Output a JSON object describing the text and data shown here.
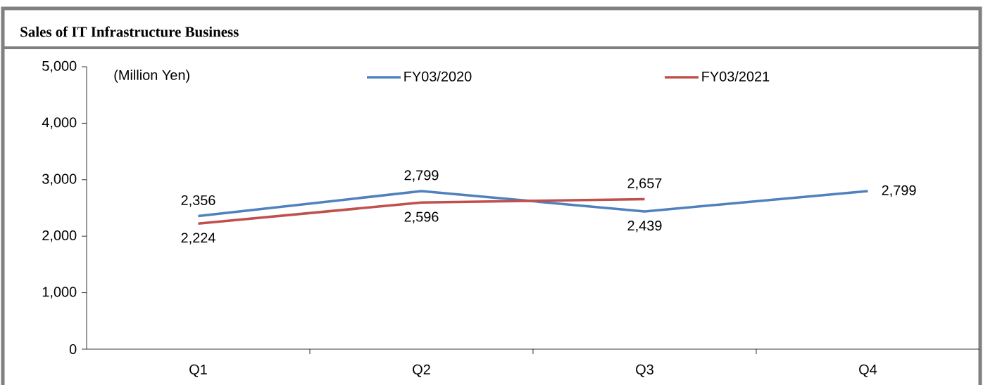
{
  "chart_data": {
    "type": "line",
    "title": "Sales of IT Infrastructure Business",
    "ylabel": "(Million Yen)",
    "categories": [
      "Q1",
      "Q2",
      "Q3",
      "Q4"
    ],
    "series": [
      {
        "name": "FY03/2020",
        "color": "#4f81bd",
        "values": [
          2356,
          2799,
          2439,
          2799
        ],
        "value_labels": [
          "2,356",
          "2,799",
          "2,439",
          "2,799"
        ]
      },
      {
        "name": "FY03/2021",
        "color": "#c0504d",
        "values": [
          2224,
          2596,
          2657,
          null
        ],
        "value_labels": [
          "2,224",
          "2,596",
          "2,657",
          null
        ]
      }
    ],
    "ylim": [
      0,
      5000
    ],
    "yticks": [
      {
        "value": 0,
        "label": "0"
      },
      {
        "value": 1000,
        "label": "1,000"
      },
      {
        "value": 2000,
        "label": "2,000"
      },
      {
        "value": 3000,
        "label": "3,000"
      },
      {
        "value": 4000,
        "label": "4,000"
      },
      {
        "value": 5000,
        "label": "5,000"
      }
    ],
    "legend": "top",
    "marker": "none",
    "line_style": "solid"
  }
}
